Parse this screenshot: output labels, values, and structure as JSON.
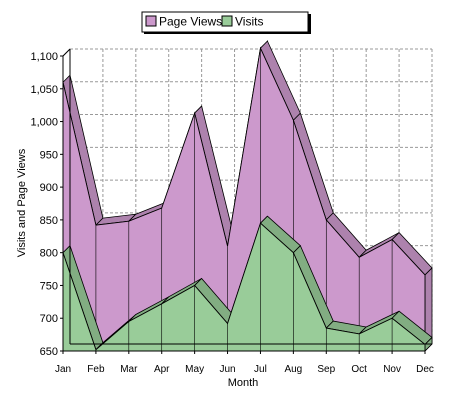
{
  "chart_data": {
    "type": "area",
    "title": "",
    "xlabel": "Month",
    "ylabel": "Visits and Page Views",
    "categories": [
      "Jan",
      "Feb",
      "Mar",
      "Apr",
      "May",
      "Jun",
      "Jul",
      "Aug",
      "Sep",
      "Oct",
      "Nov",
      "Dec"
    ],
    "ylim": [
      650,
      1100
    ],
    "yticks": [
      "650",
      "700",
      "750",
      "800",
      "850",
      "900",
      "950",
      "1,000",
      "1,050",
      "1,100"
    ],
    "ytick_values": [
      650,
      700,
      750,
      800,
      850,
      900,
      950,
      1000,
      1050,
      1100
    ],
    "grid": true,
    "legend_position": "top-center",
    "series": [
      {
        "name": "Page Views",
        "color": "#cc99cc",
        "values": [
          1060,
          842,
          848,
          868,
          1013,
          810,
          1112,
          1002,
          850,
          793,
          820,
          766
        ]
      },
      {
        "name": "Visits",
        "color": "#99cc99",
        "values": [
          800,
          652,
          695,
          722,
          750,
          692,
          845,
          800,
          685,
          676,
          700,
          660
        ]
      }
    ]
  }
}
